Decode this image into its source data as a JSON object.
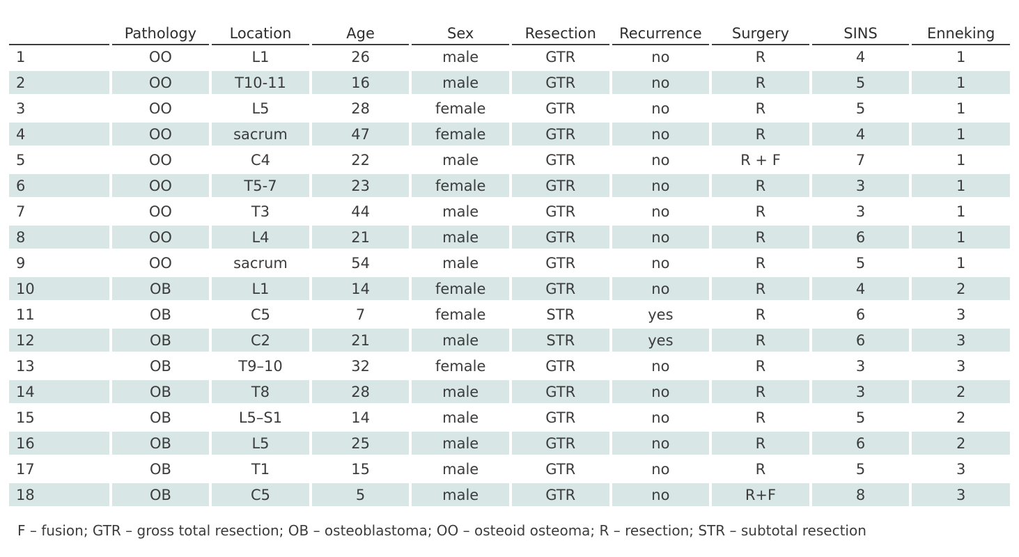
{
  "table": {
    "headers": [
      "",
      "Pathology",
      "Location",
      "Age",
      "Sex",
      "Resection",
      "Recurrence",
      "Surgery",
      "SINS",
      "Enneking"
    ],
    "rows": [
      [
        "1",
        "OO",
        "L1",
        "26",
        "male",
        "GTR",
        "no",
        "R",
        "4",
        "1"
      ],
      [
        "2",
        "OO",
        "T10-11",
        "16",
        "male",
        "GTR",
        "no",
        "R",
        "5",
        "1"
      ],
      [
        "3",
        "OO",
        "L5",
        "28",
        "female",
        "GTR",
        "no",
        "R",
        "5",
        "1"
      ],
      [
        "4",
        "OO",
        "sacrum",
        "47",
        "female",
        "GTR",
        "no",
        "R",
        "4",
        "1"
      ],
      [
        "5",
        "OO",
        "C4",
        "22",
        "male",
        "GTR",
        "no",
        "R + F",
        "7",
        "1"
      ],
      [
        "6",
        "OO",
        "T5-7",
        "23",
        "female",
        "GTR",
        "no",
        "R",
        "3",
        "1"
      ],
      [
        "7",
        "OO",
        "T3",
        "44",
        "male",
        "GTR",
        "no",
        "R",
        "3",
        "1"
      ],
      [
        "8",
        "OO",
        "L4",
        "21",
        "male",
        "GTR",
        "no",
        "R",
        "6",
        "1"
      ],
      [
        "9",
        "OO",
        "sacrum",
        "54",
        "male",
        "GTR",
        "no",
        "R",
        "5",
        "1"
      ],
      [
        "10",
        "OB",
        "L1",
        "14",
        "female",
        "GTR",
        "no",
        "R",
        "4",
        "2"
      ],
      [
        "11",
        "OB",
        "C5",
        "7",
        "female",
        "STR",
        "yes",
        "R",
        "6",
        "3"
      ],
      [
        "12",
        "OB",
        "C2",
        "21",
        "male",
        "STR",
        "yes",
        "R",
        "6",
        "3"
      ],
      [
        "13",
        "OB",
        "T9–10",
        "32",
        "female",
        "GTR",
        "no",
        "R",
        "3",
        "3"
      ],
      [
        "14",
        "OB",
        "T8",
        "28",
        "male",
        "GTR",
        "no",
        "R",
        "3",
        "2"
      ],
      [
        "15",
        "OB",
        "L5–S1",
        "14",
        "male",
        "GTR",
        "no",
        "R",
        "5",
        "2"
      ],
      [
        "16",
        "OB",
        "L5",
        "25",
        "male",
        "GTR",
        "no",
        "R",
        "6",
        "2"
      ],
      [
        "17",
        "OB",
        "T1",
        "15",
        "male",
        "GTR",
        "no",
        "R",
        "5",
        "3"
      ],
      [
        "18",
        "OB",
        "C5",
        "5",
        "male",
        "GTR",
        "no",
        "R+F",
        "8",
        "3"
      ]
    ],
    "shade_color": "#d8e6e6"
  },
  "footnote": "F – fusion; GTR – gross total resection; OB – osteoblastoma; OO – osteoid osteoma; R – resection; STR – subtotal resection"
}
